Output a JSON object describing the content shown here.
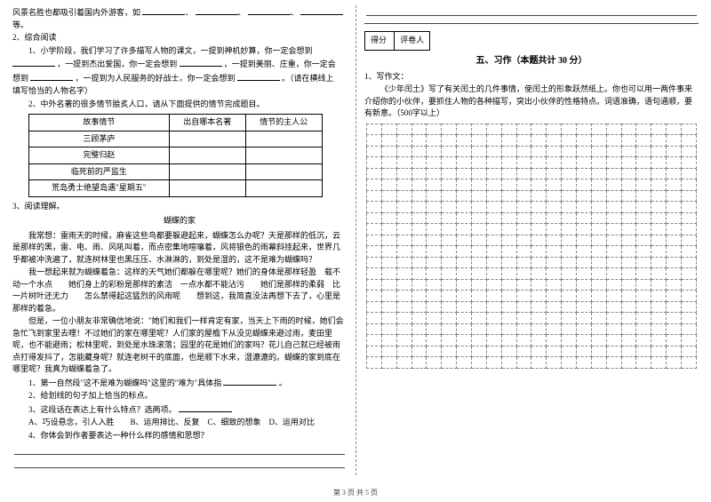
{
  "left": {
    "scenery": "风景名胜也都吸引着国内外游客，如",
    "scenery_end": "等。",
    "item2": "2、综合阅读",
    "sub1a": "1、小学阶段，我们学习了许多描写人物的课文，一提到神机妙算，你一定会想到",
    "sub1b": "，一提到杰出爱国，你一定会想到",
    "sub1c": "，一提到美丽、庄重，你一定会",
    "sub1d": "想到",
    "sub1e": "，一提到为人民服务的好战士，你一定会想到",
    "sub1f": "。（请在横线上",
    "sub1g": "填写恰当的人物名字）",
    "sub2": "2、中外名著的很多情节脍炙人口，请从下面提供的情节完成题目。",
    "tbl": {
      "h1": "故事情节",
      "h2": "出自哪本名著",
      "h3": "情节的主人公",
      "r1": "三顾茅庐",
      "r2": "完璧归赵",
      "r3": "临死前的严监生",
      "r4": "荒岛勇士绝望岛遇\"星期五\""
    },
    "item3": "3、阅读理解。",
    "essay_title": "蝴蝶的家",
    "p1": "我常想：雷雨天的时候，麻雀这些鸟都要躲避起来，蝴蝶怎么办呢？天是那样的低沉，云是那样的黑，雷、电、雨、风吼叫着，而点密集地喧嚷着，风将银色的雨幕斜挂起来，世界几乎都被冲洗遍了，就连树林里也黑压压、水淋淋的，到处是湿的，这不是难为蝴蝶吗？",
    "p2": "我一想起来就为蝴蝶着急：这样的天气她们都躲在哪里呢？她们的身体是那样轻盈　载不动一个水点　　她们身上的彩粉是那样的素洁　一点水都不能沾污　　她们是那样的柔弱　比一片树叶还无力　　怎么禁得起这猛烈的风雨呢　　想到这，我简直没法再想下去了，心里是那样的着急。",
    "p3": "但是，一位小朋友非常确信地说：\"她们和我们一样肯定有家，当天上下雨的时候，她们会急忙飞到家里去哩！不过她们的家在哪里呢？人们家的屋檐下从没见蝴蝶来避过雨，麦田里呢，也不能避雨；松林里呢，到处是水珠滚落；园里的花是她们的家吗？花儿自己就已经被雨点打得发抖了，怎能藏身呢？就连老树干的底面，也是顺下水来，湿漉漉的。蝴蝶的家到底在哪里呢？我真为蝴蝶着急了。",
    "q1": "1、第一自然段\"这不是难为蝴蝶吗\"这里的\"难为\"具体指",
    "q1end": "。",
    "q2": "2、给划线的句子加上恰当的标点。",
    "q3": "3、这段话在表达上有什么特点？选两项。",
    "q3opt": "A、巧设悬念，引人入胜　　B、运用排比、反复　C、细致的想象　D、运用对比",
    "q4": "4、你体会到作者要表达一种什么样的感情和思想？"
  },
  "right": {
    "score_l": "得分",
    "score_r": "评卷人",
    "section": "五、习作（本题共计 30 分）",
    "w1": "1、写作文：",
    "w2": "《少年闰土》写了有关闰土的几件事情，使闰土的形象跃然纸上。你也可以用一两件事来介绍你的小伙伴，要抓住人物的各种描写，突出小伙伴的性格特点。词语准确，语句通顺，要有新意。（500字以上）"
  },
  "footer": "第 3 页  共 5 页"
}
